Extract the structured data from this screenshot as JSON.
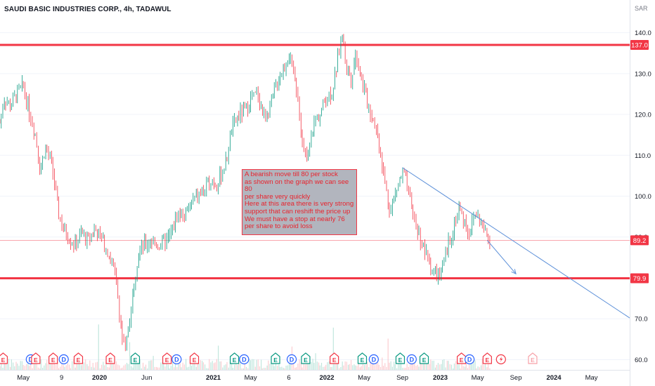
{
  "header": {
    "symbol": "SAUDI BASIC INDUSTRIES CORP., 4h, TADAWUL",
    "currency": "SAR"
  },
  "annotation": {
    "text": "A bearish move till 80 per stock\nas shown on the graph we can see 80\nper share very quickly\nHere at this area there is very strong\nsupport that can reshift the price up\nWe must have a stop at nearly 76\nper share to avoid loss"
  },
  "price_labels": [
    {
      "text": "137.0",
      "value": 137.0,
      "color": "#f23645"
    },
    {
      "text": "89.2",
      "value": 89.2,
      "color": "#f23645"
    },
    {
      "text": "79.9",
      "value": 79.9,
      "color": "#f23645"
    }
  ],
  "chart_data": {
    "type": "line",
    "subtype": "candlestick",
    "y_ticks": [
      "60.0",
      "70.0",
      "80.0",
      "90.0",
      "100.0",
      "110.0",
      "120.0",
      "130.0",
      "140.0"
    ],
    "y_tick_values": [
      60,
      70,
      80,
      90,
      100,
      110,
      120,
      130,
      140
    ],
    "ylim": [
      57.5,
      148
    ],
    "x_ticks": [
      "May",
      "9",
      "2020",
      "Jun",
      "2021",
      "May",
      "6",
      "2022",
      "May",
      "Sep",
      "2023",
      "May",
      "Sep",
      "2024",
      "May"
    ],
    "x_tick_dates": [
      "2019-05-01",
      "2019-09-01",
      "2020-01-01",
      "2020-06-01",
      "2021-01-01",
      "2021-05-01",
      "2021-09-01",
      "2022-01-01",
      "2022-05-01",
      "2022-09-01",
      "2023-01-01",
      "2023-05-01",
      "2023-09-01",
      "2024-01-01",
      "2024-05-01"
    ],
    "xlim": [
      "2019-02-15",
      "2024-09-01"
    ],
    "horizontal_levels": [
      137.0,
      79.9
    ],
    "last_price": 89.2,
    "trendline": {
      "from": {
        "date": "2022-09-01",
        "value": 107.0
      },
      "to": {
        "date": "2024-09-01",
        "value": 70.2
      }
    },
    "arrow": {
      "from": {
        "date": "2023-06-01",
        "value": 89.2
      },
      "to": {
        "date": "2023-09-01",
        "value": 81.0
      }
    },
    "series": [
      {
        "values": [
          {
            "date": "2019-02-15",
            "value": 118
          },
          {
            "date": "2019-03-01",
            "value": 124
          },
          {
            "date": "2019-03-20",
            "value": 122
          },
          {
            "date": "2019-04-10",
            "value": 125
          },
          {
            "date": "2019-05-01",
            "value": 127
          },
          {
            "date": "2019-05-20",
            "value": 121
          },
          {
            "date": "2019-06-10",
            "value": 115
          },
          {
            "date": "2019-06-25",
            "value": 106
          },
          {
            "date": "2019-07-10",
            "value": 112
          },
          {
            "date": "2019-08-01",
            "value": 108
          },
          {
            "date": "2019-08-20",
            "value": 97
          },
          {
            "date": "2019-09-05",
            "value": 92
          },
          {
            "date": "2019-09-25",
            "value": 90
          },
          {
            "date": "2019-10-15",
            "value": 88
          },
          {
            "date": "2019-11-05",
            "value": 91
          },
          {
            "date": "2019-11-25",
            "value": 89
          },
          {
            "date": "2019-12-15",
            "value": 92
          },
          {
            "date": "2020-01-05",
            "value": 90
          },
          {
            "date": "2020-01-25",
            "value": 87
          },
          {
            "date": "2020-02-15",
            "value": 83
          },
          {
            "date": "2020-03-01",
            "value": 75
          },
          {
            "date": "2020-03-15",
            "value": 65
          },
          {
            "date": "2020-03-25",
            "value": 62
          },
          {
            "date": "2020-04-05",
            "value": 69
          },
          {
            "date": "2020-04-20",
            "value": 78
          },
          {
            "date": "2020-05-05",
            "value": 86
          },
          {
            "date": "2020-05-25",
            "value": 88
          },
          {
            "date": "2020-06-15",
            "value": 89
          },
          {
            "date": "2020-07-10",
            "value": 88
          },
          {
            "date": "2020-08-05",
            "value": 89
          },
          {
            "date": "2020-08-25",
            "value": 92
          },
          {
            "date": "2020-09-10",
            "value": 96
          },
          {
            "date": "2020-09-30",
            "value": 95
          },
          {
            "date": "2020-10-20",
            "value": 98
          },
          {
            "date": "2020-11-10",
            "value": 100
          },
          {
            "date": "2020-12-01",
            "value": 101
          },
          {
            "date": "2020-12-25",
            "value": 104
          },
          {
            "date": "2021-01-15",
            "value": 103
          },
          {
            "date": "2021-02-10",
            "value": 108
          },
          {
            "date": "2021-03-01",
            "value": 116
          },
          {
            "date": "2021-03-25",
            "value": 120
          },
          {
            "date": "2021-04-15",
            "value": 121
          },
          {
            "date": "2021-05-05",
            "value": 124
          },
          {
            "date": "2021-05-25",
            "value": 125
          },
          {
            "date": "2021-06-15",
            "value": 119
          },
          {
            "date": "2021-07-05",
            "value": 122
          },
          {
            "date": "2021-07-25",
            "value": 128
          },
          {
            "date": "2021-08-15",
            "value": 131
          },
          {
            "date": "2021-09-01",
            "value": 135
          },
          {
            "date": "2021-09-15",
            "value": 130
          },
          {
            "date": "2021-10-01",
            "value": 125
          },
          {
            "date": "2021-10-15",
            "value": 112
          },
          {
            "date": "2021-11-01",
            "value": 108
          },
          {
            "date": "2021-11-20",
            "value": 118
          },
          {
            "date": "2021-12-10",
            "value": 120
          },
          {
            "date": "2021-12-30",
            "value": 124
          },
          {
            "date": "2022-01-20",
            "value": 126
          },
          {
            "date": "2022-02-05",
            "value": 133
          },
          {
            "date": "2022-02-20",
            "value": 140
          },
          {
            "date": "2022-03-05",
            "value": 132
          },
          {
            "date": "2022-03-20",
            "value": 129
          },
          {
            "date": "2022-04-05",
            "value": 135
          },
          {
            "date": "2022-04-25",
            "value": 128
          },
          {
            "date": "2022-05-15",
            "value": 122
          },
          {
            "date": "2022-06-05",
            "value": 118
          },
          {
            "date": "2022-06-25",
            "value": 110
          },
          {
            "date": "2022-07-10",
            "value": 102
          },
          {
            "date": "2022-07-25",
            "value": 96
          },
          {
            "date": "2022-08-10",
            "value": 101
          },
          {
            "date": "2022-08-25",
            "value": 104
          },
          {
            "date": "2022-09-05",
            "value": 106
          },
          {
            "date": "2022-09-25",
            "value": 99
          },
          {
            "date": "2022-10-15",
            "value": 93
          },
          {
            "date": "2022-11-05",
            "value": 88
          },
          {
            "date": "2022-11-25",
            "value": 84
          },
          {
            "date": "2022-12-15",
            "value": 81
          },
          {
            "date": "2022-12-30",
            "value": 80
          },
          {
            "date": "2023-01-15",
            "value": 84
          },
          {
            "date": "2023-01-30",
            "value": 89
          },
          {
            "date": "2023-02-15",
            "value": 93
          },
          {
            "date": "2023-03-01",
            "value": 97
          },
          {
            "date": "2023-03-20",
            "value": 94
          },
          {
            "date": "2023-04-05",
            "value": 91
          },
          {
            "date": "2023-04-25",
            "value": 96
          },
          {
            "date": "2023-05-10",
            "value": 94
          },
          {
            "date": "2023-05-25",
            "value": 91
          },
          {
            "date": "2023-06-10",
            "value": 89.2
          }
        ]
      }
    ]
  },
  "event_markers": [
    {
      "label": "E",
      "date": "2019-02-25",
      "color": "#f23645"
    },
    {
      "label": "D",
      "date": "2019-05-25",
      "color": "#2962ff"
    },
    {
      "label": "E",
      "date": "2019-06-10",
      "color": "#f23645"
    },
    {
      "label": "E",
      "date": "2019-08-05",
      "color": "#f23645"
    },
    {
      "label": "D",
      "date": "2019-09-08",
      "color": "#2962ff"
    },
    {
      "label": "E",
      "date": "2019-10-25",
      "color": "#f23645"
    },
    {
      "label": "E",
      "date": "2020-02-05",
      "color": "#f23645"
    },
    {
      "label": "E",
      "date": "2020-04-25",
      "color": "#089981"
    },
    {
      "label": "E",
      "date": "2020-08-05",
      "color": "#f23645"
    },
    {
      "label": "D",
      "date": "2020-09-05",
      "color": "#2962ff"
    },
    {
      "label": "E",
      "date": "2020-11-01",
      "color": "#f23645"
    },
    {
      "label": "E",
      "date": "2021-03-10",
      "color": "#089981"
    },
    {
      "label": "D",
      "date": "2021-04-10",
      "color": "#2962ff"
    },
    {
      "label": "E",
      "date": "2021-07-20",
      "color": "#089981"
    },
    {
      "label": "D",
      "date": "2021-09-10",
      "color": "#2962ff"
    },
    {
      "label": "E",
      "date": "2021-10-25",
      "color": "#089981"
    },
    {
      "label": "E",
      "date": "2022-01-25",
      "color": "#f23645"
    },
    {
      "label": "E",
      "date": "2022-04-25",
      "color": "#089981"
    },
    {
      "label": "D",
      "date": "2022-06-01",
      "color": "#2962ff"
    },
    {
      "label": "E",
      "date": "2022-08-25",
      "color": "#089981"
    },
    {
      "label": "D",
      "date": "2022-10-01",
      "color": "#2962ff"
    },
    {
      "label": "E",
      "date": "2022-11-10",
      "color": "#089981"
    },
    {
      "label": "E",
      "date": "2023-03-10",
      "color": "#f23645"
    },
    {
      "label": "D",
      "date": "2023-04-05",
      "color": "#2962ff"
    },
    {
      "label": "E",
      "date": "2023-06-01",
      "color": "#f23645"
    },
    {
      "label": "flash",
      "date": "2023-07-15",
      "color": "#f23645"
    },
    {
      "label": "E",
      "date": "2023-10-25",
      "color": "#f7a1a8"
    }
  ]
}
